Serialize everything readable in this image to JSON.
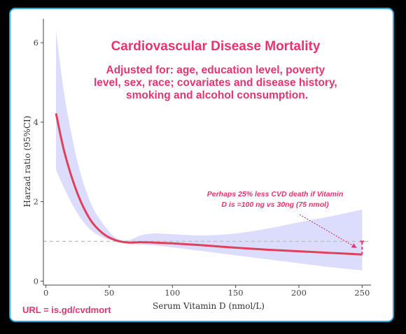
{
  "chart_data": {
    "type": "line",
    "title": "Cardiovascular Disease Mortality",
    "subtitle": "Adjusted for: age, education level, poverty level, sex, race; covariates and disease history, smoking and alcohol consumption.",
    "xlabel": "Serum Vitamin D (nmol/L)",
    "ylabel": "Harzad ratio (95%CI)",
    "xlim": [
      -2,
      257
    ],
    "ylim": [
      -0.1,
      6.6
    ],
    "x_ticks": [
      0,
      50,
      100,
      150,
      200,
      250
    ],
    "y_ticks": [
      0,
      2,
      4,
      6
    ],
    "reference_line_y": 1,
    "grid": false,
    "series": [
      {
        "kind": "estimate",
        "x": [
          8,
          15,
          25,
          35,
          45,
          55,
          65,
          75,
          85,
          100,
          125,
          150,
          175,
          200,
          225,
          250
        ],
        "y": [
          4.22,
          3.2,
          2.2,
          1.55,
          1.2,
          1.03,
          0.97,
          0.98,
          0.97,
          0.95,
          0.9,
          0.84,
          0.79,
          0.75,
          0.71,
          0.67
        ]
      },
      {
        "kind": "ci-lower",
        "x": [
          8,
          15,
          25,
          35,
          45,
          55,
          65,
          75,
          85,
          100,
          125,
          150,
          175,
          200,
          225,
          250
        ],
        "y": [
          2.8,
          2.3,
          1.7,
          1.3,
          1.1,
          1.0,
          0.95,
          0.92,
          0.9,
          0.85,
          0.75,
          0.65,
          0.55,
          0.45,
          0.35,
          0.27
        ]
      },
      {
        "kind": "ci-upper",
        "x": [
          8,
          15,
          25,
          35,
          45,
          55,
          65,
          75,
          85,
          100,
          125,
          150,
          175,
          200,
          225,
          250
        ],
        "y": [
          6.3,
          4.6,
          3.0,
          2.0,
          1.45,
          1.1,
          1.03,
          1.15,
          1.2,
          1.18,
          1.15,
          1.2,
          1.32,
          1.48,
          1.63,
          1.8
        ]
      }
    ],
    "annotation": {
      "text_line1": "Perhaps 25% less CVD death if Vitamin",
      "text_line2": "D is =100 ng vs 30ng (75 nmol)",
      "arrow_target_x": 248,
      "arrow_target_y": 0.8,
      "marker_x": 250,
      "marker_y_range": [
        0.67,
        1.0
      ]
    },
    "footer": "URL = is.gd/cvdmort",
    "colors": {
      "estimate": "#e0405a",
      "ci_band": "#dcdcfc",
      "reference": "#c0c0c0",
      "title": "#e8336d",
      "annotation": "#e8336d",
      "frame": "#29a8e0",
      "axis": "#444444"
    }
  }
}
